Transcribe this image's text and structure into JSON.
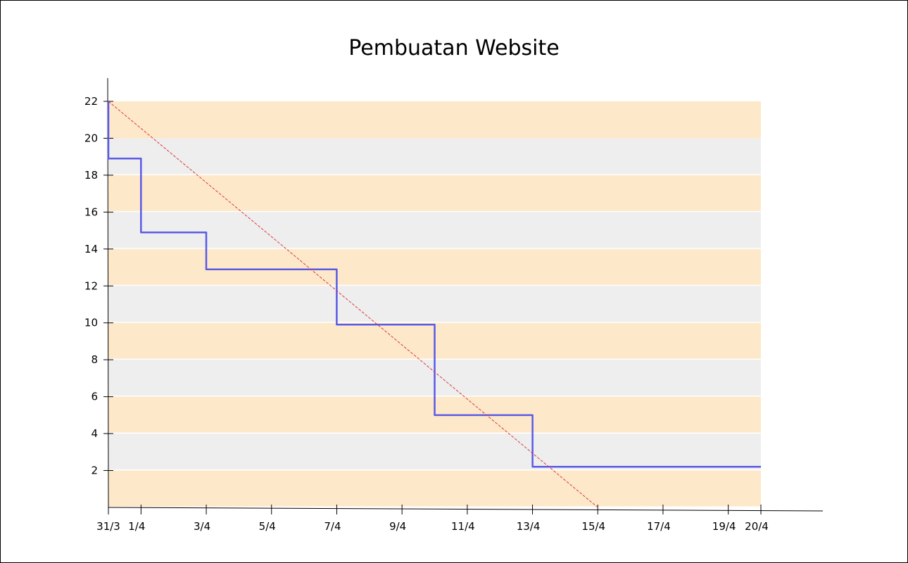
{
  "chart_data": {
    "type": "line",
    "title": "Pembuatan Website",
    "xlabel": "",
    "ylabel": "",
    "x_ticks": [
      "31/3",
      "1/4",
      "3/4",
      "5/4",
      "7/4",
      "9/4",
      "11/4",
      "13/4",
      "15/4",
      "17/4",
      "19/4",
      "20/4"
    ],
    "y_ticks": [
      2,
      4,
      6,
      8,
      10,
      12,
      14,
      16,
      18,
      20,
      22
    ],
    "ylim": [
      0,
      22
    ],
    "grid": false,
    "background_bands": {
      "band_height": 2,
      "colors": [
        "#fde9c9",
        "#eeeeee"
      ]
    },
    "series": [
      {
        "style": "step",
        "color": "#5a5ae6",
        "points": [
          [
            "31/3",
            22
          ],
          [
            "31/3",
            18.9
          ],
          [
            "1/4",
            18.9
          ],
          [
            "1/4",
            14.9
          ],
          [
            "3/4",
            14.9
          ],
          [
            "3/4",
            12.9
          ],
          [
            "7/4",
            12.9
          ],
          [
            "7/4",
            9.9
          ],
          [
            "10/4",
            9.9
          ],
          [
            "10/4",
            5
          ],
          [
            "13/4",
            5
          ],
          [
            "13/4",
            2.2
          ],
          [
            "20/4",
            2.2
          ]
        ]
      },
      {
        "style": "dashed",
        "color": "#d93b3b",
        "points": [
          [
            "31/3",
            22
          ],
          [
            "15/4",
            0
          ]
        ]
      }
    ]
  }
}
